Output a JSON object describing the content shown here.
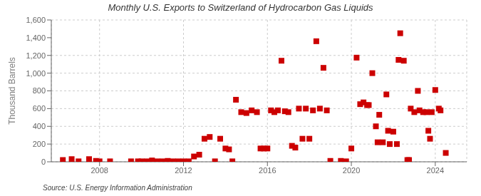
{
  "chart_data": {
    "type": "scatter",
    "title": "Monthly U.S. Exports to Switzerland of Hydrocarbon Gas Liquids",
    "ylabel": "Thousand Barrels",
    "annotations": [
      "Source: U.S. Energy Information Administration"
    ],
    "color": "#cc0000",
    "marker": "square",
    "grid": true,
    "xlim": [
      2005.7,
      2025.5
    ],
    "xticks": [
      2008,
      2012,
      2016,
      2020,
      2024
    ],
    "ylim": [
      0,
      1600
    ],
    "yticks": [
      0,
      200,
      400,
      600,
      800,
      {
        "value": 1000,
        "label": "1,000"
      },
      {
        "value": 1200,
        "label": "1,200"
      },
      {
        "value": 1400,
        "label": "1,400"
      },
      {
        "value": 1600,
        "label": "1,600"
      }
    ],
    "x": [
      2006.25,
      2006.67,
      2007.0,
      2007.5,
      2007.83,
      2008.0,
      2008.5,
      2009.5,
      2009.83,
      2010.0,
      2010.25,
      2010.5,
      2010.75,
      2011.0,
      2011.25,
      2011.5,
      2011.75,
      2012.0,
      2012.25,
      2012.5,
      2012.75,
      2013.0,
      2013.25,
      2013.5,
      2013.75,
      2014.0,
      2014.17,
      2014.33,
      2014.5,
      2014.75,
      2015.0,
      2015.25,
      2015.5,
      2015.67,
      2015.83,
      2016.0,
      2016.17,
      2016.33,
      2016.5,
      2016.67,
      2016.83,
      2017.0,
      2017.17,
      2017.33,
      2017.5,
      2017.67,
      2017.83,
      2018.0,
      2018.17,
      2018.33,
      2018.5,
      2018.67,
      2018.83,
      2019.0,
      2019.5,
      2019.75,
      2020.0,
      2020.25,
      2020.42,
      2020.58,
      2020.75,
      2020.83,
      2021.0,
      2021.17,
      2021.25,
      2021.33,
      2021.5,
      2021.67,
      2021.75,
      2021.83,
      2022.0,
      2022.17,
      2022.25,
      2022.33,
      2022.5,
      2022.67,
      2022.75,
      2022.83,
      2023.0,
      2023.17,
      2023.25,
      2023.42,
      2023.58,
      2023.67,
      2023.75,
      2023.83,
      2024.0,
      2024.17,
      2024.25,
      2024.5
    ],
    "values": [
      20,
      30,
      5,
      30,
      10,
      5,
      5,
      5,
      5,
      5,
      5,
      15,
      5,
      5,
      10,
      5,
      5,
      5,
      5,
      60,
      80,
      260,
      280,
      5,
      260,
      150,
      140,
      5,
      700,
      560,
      550,
      580,
      560,
      150,
      150,
      150,
      580,
      560,
      580,
      1140,
      570,
      560,
      180,
      160,
      600,
      260,
      600,
      260,
      580,
      1360,
      600,
      1060,
      580,
      10,
      10,
      5,
      150,
      1175,
      650,
      670,
      640,
      640,
      1000,
      400,
      220,
      530,
      220,
      760,
      350,
      200,
      340,
      200,
      1150,
      1450,
      1140,
      20,
      20,
      600,
      560,
      800,
      580,
      560,
      560,
      350,
      260,
      560,
      810,
      600,
      580,
      100
    ]
  }
}
